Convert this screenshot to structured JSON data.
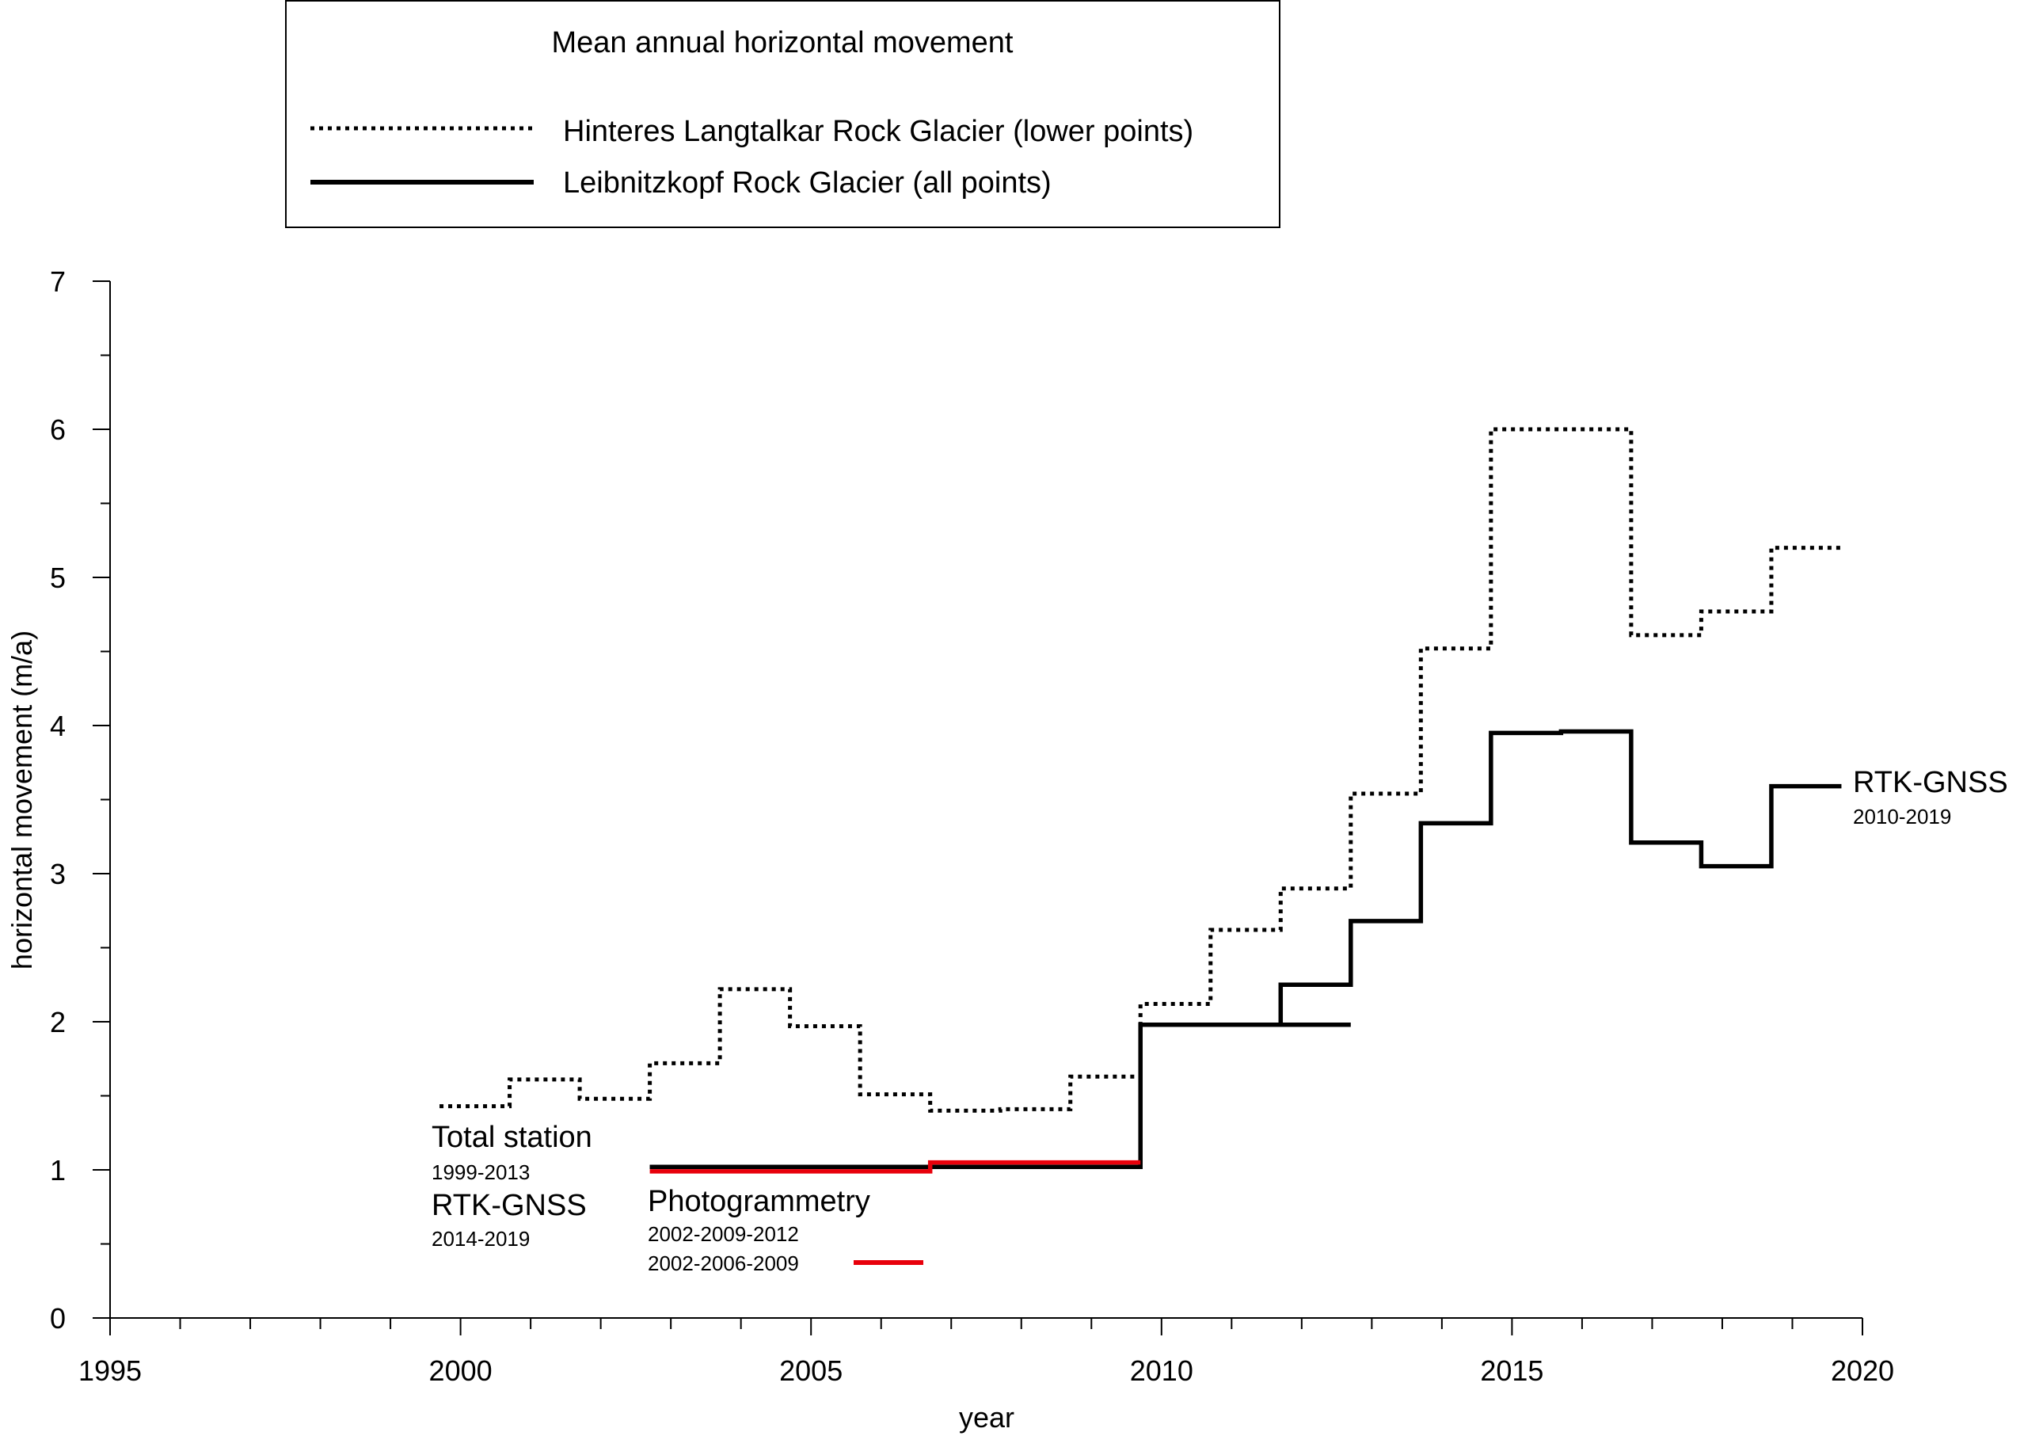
{
  "chart_data": {
    "type": "line",
    "step": true,
    "xlabel": "year",
    "ylabel": "horizontal movement (m/a)",
    "xlim": [
      1995,
      2020
    ],
    "ylim": [
      0,
      7
    ],
    "x_ticks": [
      "1995",
      "2000",
      "2005",
      "2010",
      "2015",
      "2020"
    ],
    "y_ticks": [
      "0",
      "1",
      "2",
      "3",
      "4",
      "5",
      "6",
      "7"
    ],
    "grid": false,
    "legend": {
      "title": "Mean annual horizontal movement",
      "placement": "top-left",
      "entries": [
        {
          "label": "Hinteres Langtalkar Rock Glacier (lower points)",
          "style": "dotted",
          "color": "#000000"
        },
        {
          "label": "Leibnitzkopf Rock Glacier (all points)",
          "style": "solid",
          "color": "#000000"
        }
      ]
    },
    "series": [
      {
        "name": "Hinteres Langtalkar Rock Glacier (lower points)",
        "style": "dotted",
        "color": "#000000",
        "steps": [
          {
            "x0": 1999.7,
            "x1": 2000.7,
            "y": 1.43
          },
          {
            "x0": 2000.7,
            "x1": 2001.7,
            "y": 1.61
          },
          {
            "x0": 2001.7,
            "x1": 2002.7,
            "y": 1.48
          },
          {
            "x0": 2002.7,
            "x1": 2003.7,
            "y": 1.72
          },
          {
            "x0": 2003.7,
            "x1": 2004.7,
            "y": 2.22
          },
          {
            "x0": 2004.7,
            "x1": 2005.7,
            "y": 1.97
          },
          {
            "x0": 2005.7,
            "x1": 2006.7,
            "y": 1.51
          },
          {
            "x0": 2006.7,
            "x1": 2007.7,
            "y": 1.4
          },
          {
            "x0": 2007.7,
            "x1": 2008.7,
            "y": 1.41
          },
          {
            "x0": 2008.7,
            "x1": 2009.7,
            "y": 1.63
          },
          {
            "x0": 2009.7,
            "x1": 2010.7,
            "y": 2.12
          },
          {
            "x0": 2010.7,
            "x1": 2011.7,
            "y": 2.62
          },
          {
            "x0": 2011.7,
            "x1": 2012.7,
            "y": 2.9
          },
          {
            "x0": 2012.7,
            "x1": 2013.7,
            "y": 3.54
          },
          {
            "x0": 2013.7,
            "x1": 2014.7,
            "y": 4.52
          },
          {
            "x0": 2014.7,
            "x1": 2016.7,
            "y": 6.0
          },
          {
            "x0": 2016.7,
            "x1": 2017.7,
            "y": 4.61
          },
          {
            "x0": 2017.7,
            "x1": 2018.7,
            "y": 4.77
          },
          {
            "x0": 2018.7,
            "x1": 2019.7,
            "y": 5.2
          }
        ]
      },
      {
        "name": "Leibnitzkopf Rock Glacier (all points)",
        "style": "solid",
        "color": "#000000",
        "steps": [
          {
            "x0": 2002.7,
            "x1": 2009.7,
            "y": 1.02
          },
          {
            "x0": 2009.7,
            "x1": 2011.7,
            "y": 1.98
          },
          {
            "x0": 2011.7,
            "x1": 2012.7,
            "y": 2.25
          },
          {
            "x0": 2012.7,
            "x1": 2013.7,
            "y": 2.68
          },
          {
            "x0": 2013.7,
            "x1": 2014.7,
            "y": 3.34
          },
          {
            "x0": 2014.7,
            "x1": 2015.7,
            "y": 3.95
          },
          {
            "x0": 2015.7,
            "x1": 2016.7,
            "y": 3.96
          },
          {
            "x0": 2016.7,
            "x1": 2017.7,
            "y": 3.21
          },
          {
            "x0": 2017.7,
            "x1": 2018.7,
            "y": 3.05
          },
          {
            "x0": 2018.7,
            "x1": 2019.7,
            "y": 3.59
          }
        ]
      },
      {
        "name": "Photogrammetry 2002-2009-2012",
        "style": "solid",
        "color": "#000000",
        "steps": [
          {
            "x0": 2002.7,
            "x1": 2009.7,
            "y": 1.02
          },
          {
            "x0": 2009.7,
            "x1": 2012.7,
            "y": 1.98
          }
        ]
      },
      {
        "name": "Photogrammetry 2002-2006-2009",
        "style": "solid",
        "color": "#e8000b",
        "steps": [
          {
            "x0": 2002.7,
            "x1": 2006.7,
            "y": 0.99
          },
          {
            "x0": 2006.7,
            "x1": 2009.7,
            "y": 1.05
          }
        ]
      }
    ],
    "annotations": [
      {
        "id": "ts",
        "title": "Total station",
        "period": "1999-2013"
      },
      {
        "id": "rtk_lower",
        "title": "RTK-GNSS",
        "period": "2014-2019"
      },
      {
        "id": "photo",
        "title": "Photogrammetry",
        "period": "2002-2009-2012",
        "period2": "2002-2006-2009",
        "period2_color": "#e8000b"
      },
      {
        "id": "rtk_right",
        "title": "RTK-GNSS",
        "period": "2010-2019"
      }
    ]
  }
}
